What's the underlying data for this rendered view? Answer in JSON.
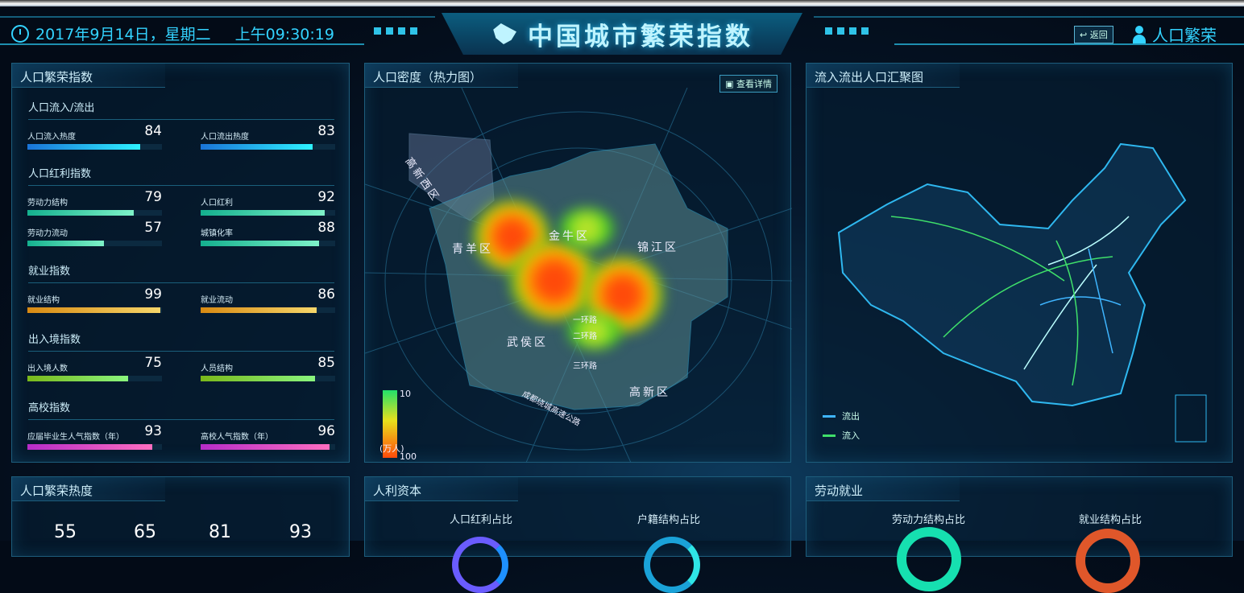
{
  "header": {
    "date": "2017年9月14日，星期二",
    "time": "上午09:30:19",
    "title": "中国城市繁荣指数",
    "back_label": "返回",
    "user_label": "人口繁荣"
  },
  "prosperity": {
    "title": "人口繁荣指数",
    "sections": [
      {
        "title": "人口流入/流出",
        "items": [
          {
            "label": "人口流入热度",
            "value": 84
          },
          {
            "label": "人口流出热度",
            "value": 83
          }
        ],
        "color": [
          "#1a74d8",
          "#2ef2ff"
        ]
      },
      {
        "title": "人口红利指数",
        "items": [
          {
            "label": "劳动力结构",
            "value": 79
          },
          {
            "label": "人口红利",
            "value": 92
          },
          {
            "label": "劳动力流动",
            "value": 57
          },
          {
            "label": "城镇化率",
            "value": 88
          }
        ],
        "color": [
          "#14b08e",
          "#7ef2c8"
        ]
      },
      {
        "title": "就业指数",
        "items": [
          {
            "label": "就业结构",
            "value": 99
          },
          {
            "label": "就业流动",
            "value": 86
          }
        ],
        "color": [
          "#d88a12",
          "#f6d66a"
        ]
      },
      {
        "title": "出入境指数",
        "items": [
          {
            "label": "出入境人数",
            "value": 75
          },
          {
            "label": "人员结构",
            "value": 85
          }
        ],
        "color": [
          "#7ab81a",
          "#8af57e"
        ]
      },
      {
        "title": "高校指数",
        "items": [
          {
            "label": "应届毕业生人气指数（年）",
            "value": 93
          },
          {
            "label": "高校人气指数（年）",
            "value": 96
          }
        ],
        "color": [
          "#b62cc8",
          "#ff6ec0"
        ]
      }
    ]
  },
  "heatmap": {
    "title": "人口密度（热力图）",
    "detail_label": "查看详情",
    "districts": [
      "高新西区",
      "青羊区",
      "金牛区",
      "锦江区",
      "武侯区",
      "高新区"
    ],
    "roads": [
      "一环路",
      "二环路",
      "三环路",
      "成都绕城高速公路"
    ],
    "legend": {
      "min": "10",
      "max": "100",
      "unit": "(万人)"
    }
  },
  "flow": {
    "title": "流入流出人口汇聚图",
    "legend": [
      {
        "label": "流出",
        "color": "#3fb5ff"
      },
      {
        "label": "流入",
        "color": "#3fe06a"
      }
    ]
  },
  "bottom": {
    "heat": {
      "title": "人口繁荣热度",
      "values": [
        "55",
        "65",
        "81",
        "93"
      ]
    },
    "capital": {
      "title": "人利资本",
      "subs": [
        "人口红利占比",
        "户籍结构占比"
      ]
    },
    "labor": {
      "title": "劳动就业",
      "subs": [
        "劳动力结构占比",
        "就业结构占比"
      ]
    }
  }
}
